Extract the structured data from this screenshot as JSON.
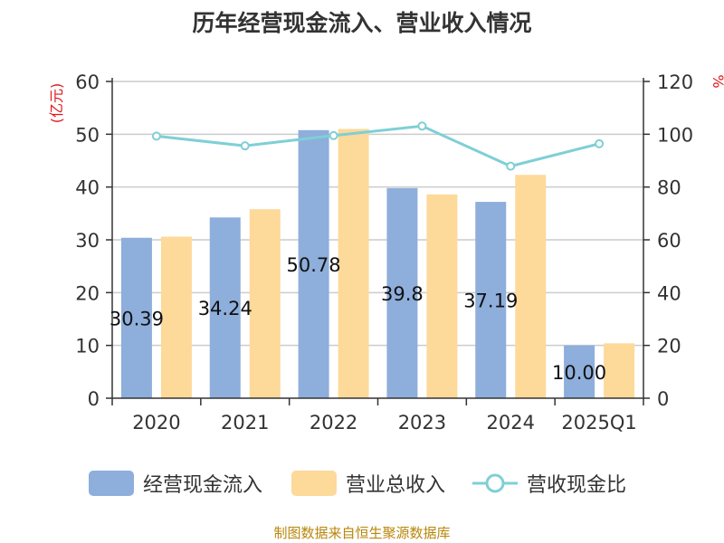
{
  "chart_data": {
    "type": "bar",
    "title": "历年经营现金流入、营业收入情况",
    "categories": [
      "2020",
      "2021",
      "2022",
      "2023",
      "2024",
      "2025Q1"
    ],
    "series": [
      {
        "name": "经营现金流入",
        "type": "bar",
        "axis": "left",
        "values": [
          30.39,
          34.24,
          50.78,
          39.8,
          37.19,
          10.0
        ],
        "data_labels": [
          "30.39",
          "34.24",
          "50.78",
          "39.8",
          "37.19",
          "10.00"
        ],
        "color": "#8eaedc"
      },
      {
        "name": "营业总收入",
        "type": "bar",
        "axis": "left",
        "values": [
          30.6,
          35.8,
          51.0,
          38.6,
          42.3,
          10.4
        ],
        "color": "#fdd99a"
      },
      {
        "name": "营收现金比",
        "type": "line",
        "axis": "right",
        "values": [
          99.3,
          95.6,
          99.5,
          103.1,
          87.9,
          96.4
        ],
        "color": "#7fcfd5"
      }
    ],
    "y_left": {
      "label": "(亿元)",
      "range": [
        0,
        60
      ],
      "ticks": [
        0,
        10,
        20,
        30,
        40,
        50,
        60
      ]
    },
    "y_right": {
      "label": "%",
      "range": [
        0,
        120
      ],
      "ticks": [
        0,
        20,
        40,
        60,
        80,
        100,
        120
      ]
    },
    "grid": true,
    "legend_position": "bottom"
  },
  "source_note": "制图数据来自恒生聚源数据库"
}
